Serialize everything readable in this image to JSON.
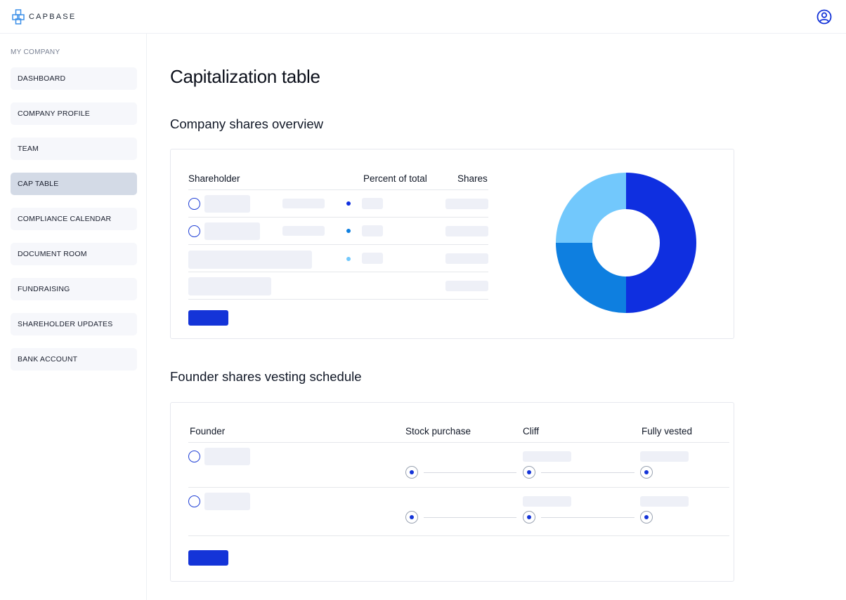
{
  "app": {
    "name": "CAPBASE"
  },
  "icons": {
    "logo": "capbase-logo-icon",
    "user": "user-circle-icon"
  },
  "colors": {
    "primary": "#1434d8",
    "series_1": "#0f2fe0",
    "series_2": "#0e7fe0",
    "series_3": "#72c8fc"
  },
  "sidebar": {
    "header": "MY COMPANY",
    "items": [
      {
        "label": "DASHBOARD",
        "active": false
      },
      {
        "label": "COMPANY PROFILE",
        "active": false
      },
      {
        "label": "TEAM",
        "active": false
      },
      {
        "label": "CAP TABLE",
        "active": true
      },
      {
        "label": "COMPLIANCE CALENDAR",
        "active": false
      },
      {
        "label": "DOCUMENT ROOM",
        "active": false
      },
      {
        "label": "FUNDRAISING",
        "active": false
      },
      {
        "label": "SHAREHOLDER UPDATES",
        "active": false
      },
      {
        "label": "BANK ACCOUNT",
        "active": false
      }
    ]
  },
  "main": {
    "title": "Capitalization table",
    "overview": {
      "title": "Company shares overview",
      "columns": {
        "shareholder": "Shareholder",
        "percent": "Percent of total",
        "shares": "Shares"
      }
    },
    "vesting": {
      "title": "Founder shares vesting schedule",
      "columns": {
        "founder": "Founder",
        "stock_purchase": "Stock purchase",
        "cliff": "Cliff",
        "fully_vested": "Fully vested"
      }
    }
  },
  "chart_data": {
    "type": "pie",
    "donut": true,
    "values": [
      50,
      25,
      25
    ],
    "colors": [
      "#0f2fe0",
      "#0e7fe0",
      "#72c8fc"
    ]
  }
}
